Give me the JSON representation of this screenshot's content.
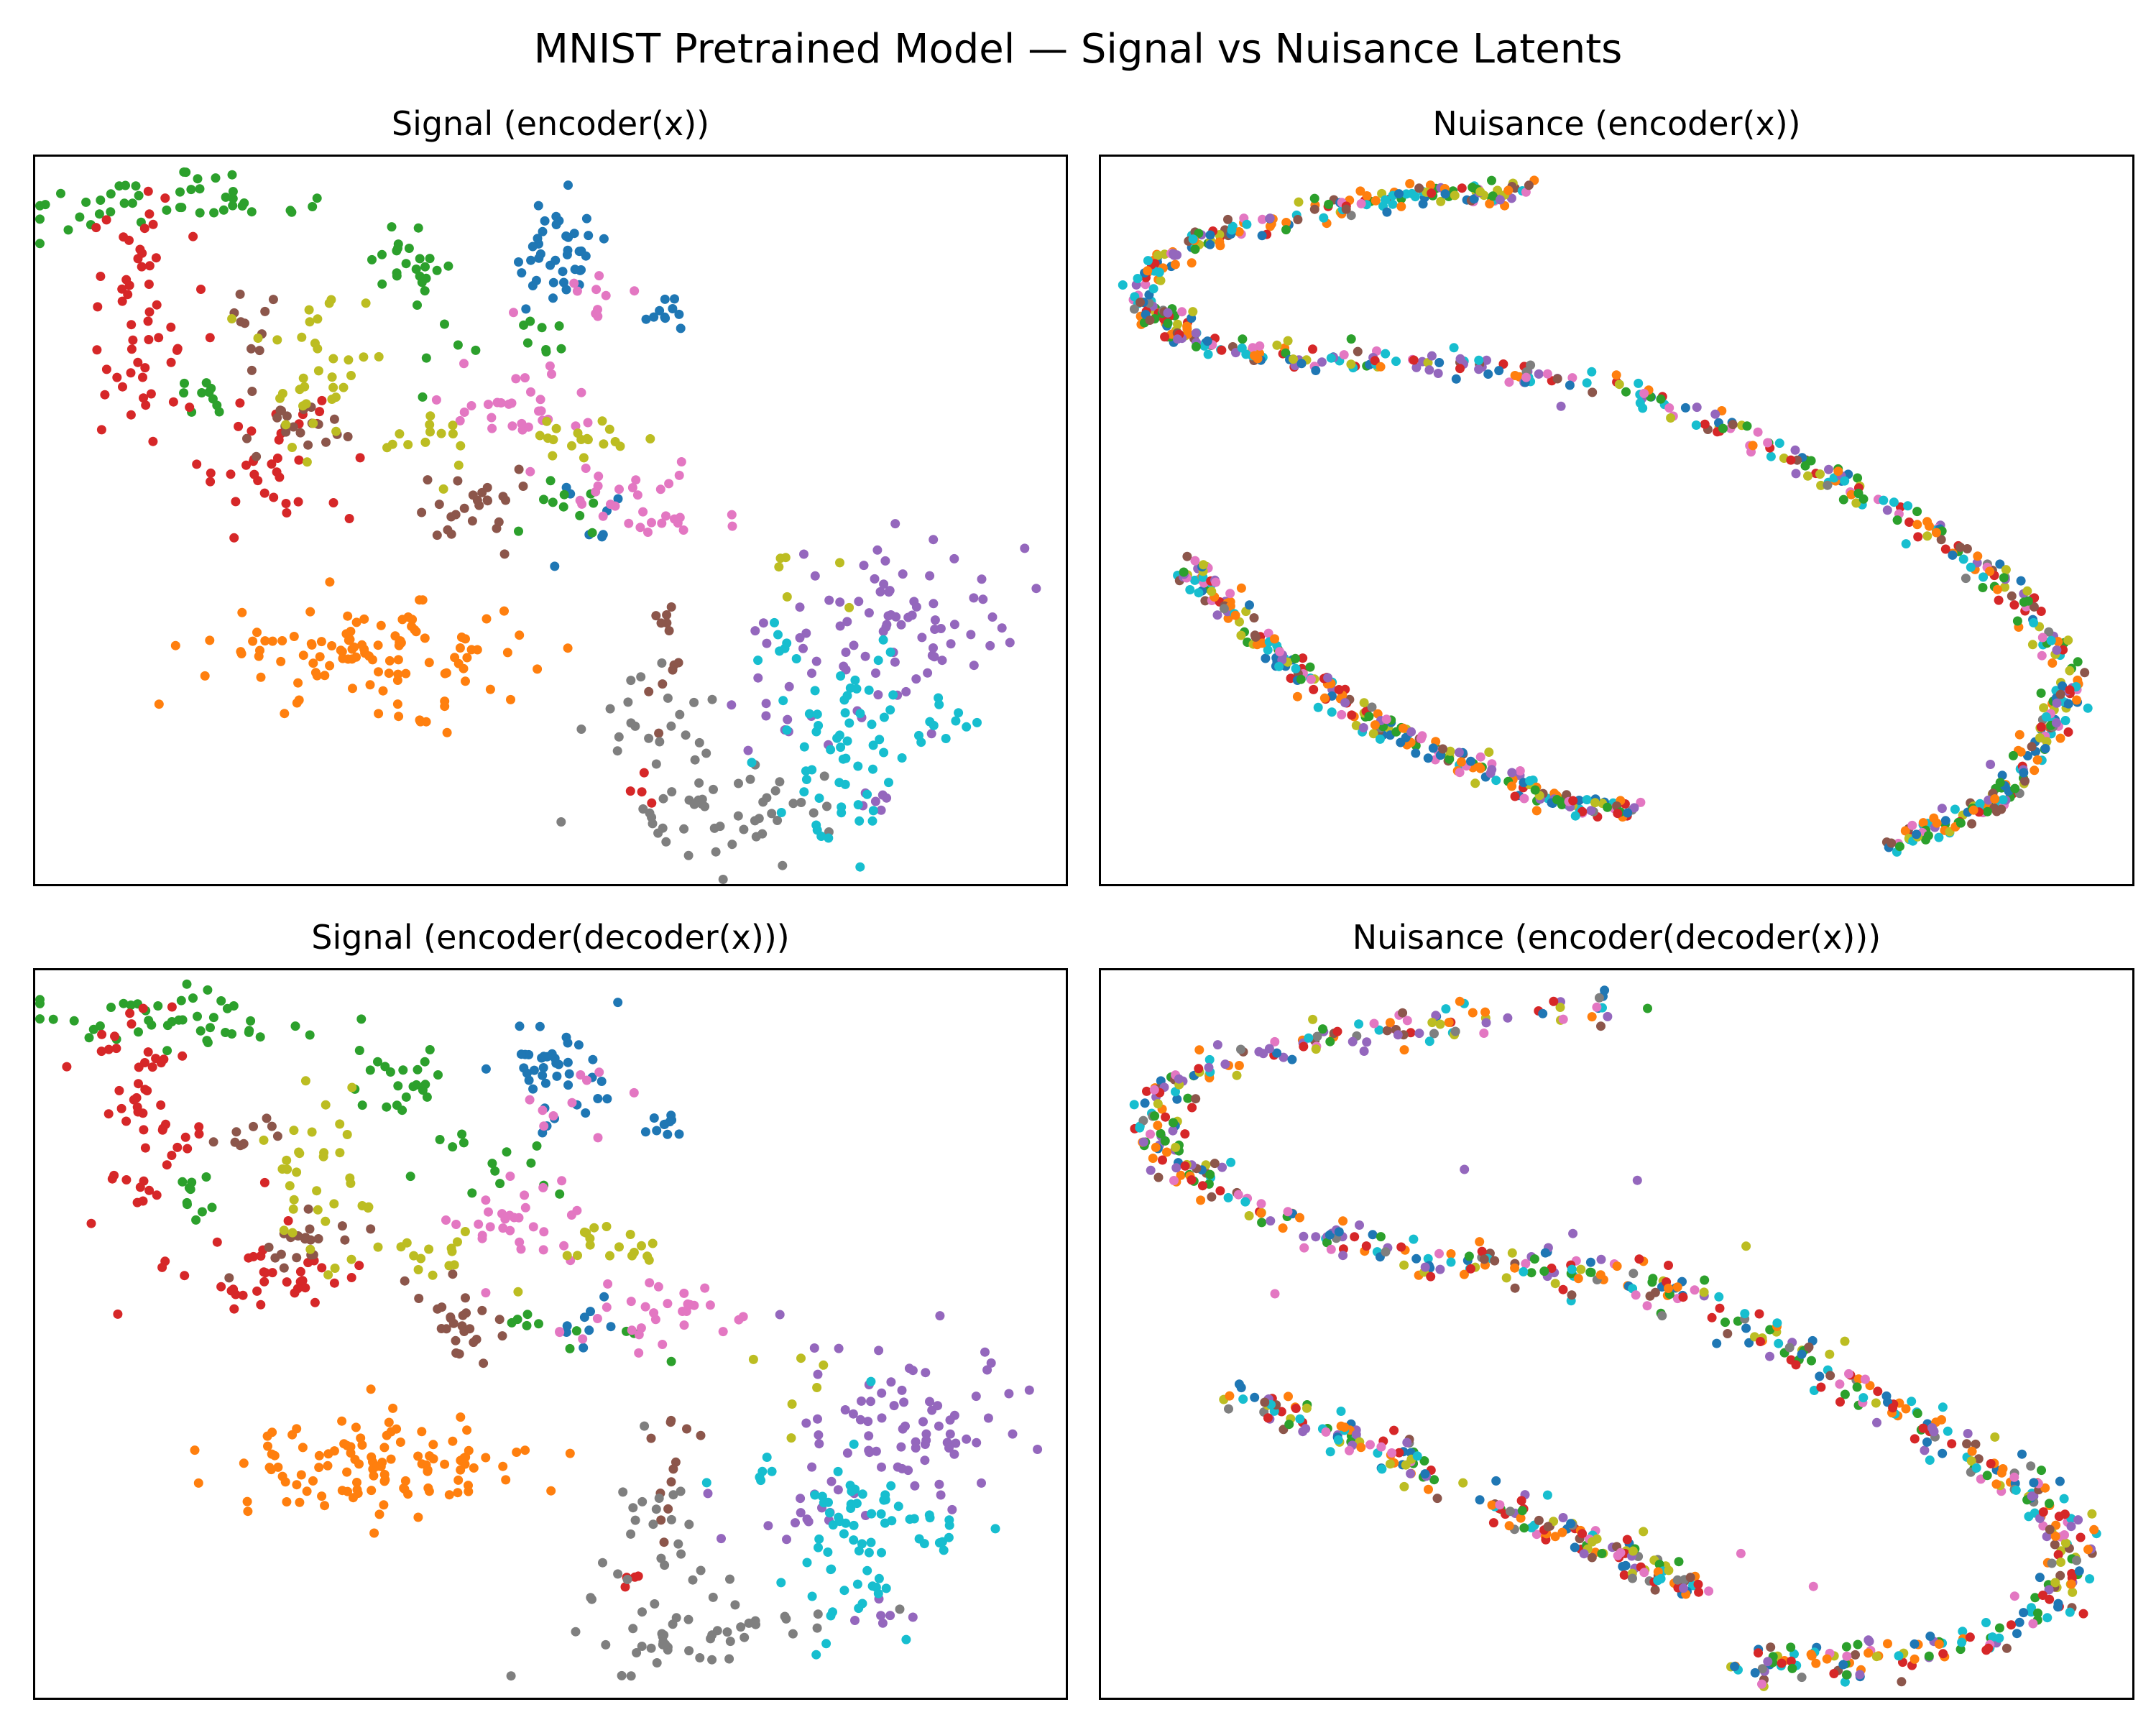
{
  "figure": {
    "title": "MNIST Pretrained Model — Signal vs Nuisance Latents"
  },
  "palette": [
    "#1f77b4",
    "#ff7f0e",
    "#2ca02c",
    "#d62728",
    "#9467bd",
    "#8c564b",
    "#e377c2",
    "#7f7f7f",
    "#bcbd22",
    "#17becf"
  ],
  "chart_data": [
    {
      "type": "scatter",
      "title": "Signal (encoder(x))",
      "xlabel": "",
      "ylabel": "",
      "axes_ticks": "hidden",
      "grid": false,
      "legend": "none",
      "xlim": [
        0,
        100
      ],
      "ylim": [
        0,
        100
      ],
      "series": [
        {
          "color_index": 0,
          "clusters": [
            {
              "cx": 50.5,
              "cy": 86,
              "sx": 2.5,
              "sy": 4,
              "n": 40
            },
            {
              "cx": 61,
              "cy": 78.5,
              "sx": 1.2,
              "sy": 1,
              "n": 10
            },
            {
              "cx": 54,
              "cy": 52,
              "sx": 1.8,
              "sy": 3,
              "n": 8
            }
          ]
        },
        {
          "color_index": 1,
          "clusters": [
            {
              "cx": 33,
              "cy": 32,
              "sx": 8,
              "sy": 3.5,
              "n": 110
            }
          ]
        },
        {
          "color_index": 2,
          "clusters": [
            {
              "cx": 12,
              "cy": 93,
              "sx": 7,
              "sy": 1.8,
              "n": 45
            },
            {
              "cx": 37,
              "cy": 84.5,
              "sx": 3,
              "sy": 2.5,
              "n": 22
            },
            {
              "cx": 16,
              "cy": 68,
              "sx": 1.5,
              "sy": 2,
              "n": 10
            },
            {
              "cx": 44,
              "cy": 73,
              "sx": 5,
              "sy": 3,
              "n": 14
            },
            {
              "cx": 52,
              "cy": 51,
              "sx": 3,
              "sy": 2,
              "n": 10
            }
          ]
        },
        {
          "color_index": 3,
          "clusters": [
            {
              "cx": 11,
              "cy": 79,
              "sx": 2.8,
              "sy": 9,
              "n": 55
            },
            {
              "cx": 23,
              "cy": 58,
              "sx": 4,
              "sy": 4,
              "n": 35
            },
            {
              "cx": 59,
              "cy": 14,
              "sx": 1.5,
              "sy": 2,
              "n": 4
            }
          ]
        },
        {
          "color_index": 4,
          "clusters": [
            {
              "cx": 84,
              "cy": 36.5,
              "sx": 6,
              "sy": 6,
              "n": 75
            },
            {
              "cx": 74,
              "cy": 25,
              "sx": 3,
              "sy": 4,
              "n": 15
            },
            {
              "cx": 82,
              "cy": 11,
              "sx": 1.5,
              "sy": 1,
              "n": 6
            }
          ]
        },
        {
          "color_index": 5,
          "clusters": [
            {
              "cx": 26,
              "cy": 63,
              "sx": 2.5,
              "sy": 2.5,
              "n": 20
            },
            {
              "cx": 41.5,
              "cy": 52,
              "sx": 2.5,
              "sy": 3,
              "n": 25
            },
            {
              "cx": 21,
              "cy": 77,
              "sx": 2,
              "sy": 3,
              "n": 10
            },
            {
              "cx": 61.5,
              "cy": 33,
              "sx": 1.2,
              "sy": 5,
              "n": 12
            }
          ]
        },
        {
          "color_index": 6,
          "clusters": [
            {
              "cx": 46,
              "cy": 65.5,
              "sx": 4,
              "sy": 3,
              "n": 30
            },
            {
              "cx": 59,
              "cy": 52,
              "sx": 4,
              "sy": 3,
              "n": 30
            },
            {
              "cx": 54,
              "cy": 80,
              "sx": 3,
              "sy": 3,
              "n": 10
            }
          ]
        },
        {
          "color_index": 7,
          "clusters": [
            {
              "cx": 66.5,
              "cy": 10,
              "sx": 6,
              "sy": 3.5,
              "n": 50
            },
            {
              "cx": 60,
              "cy": 24,
              "sx": 3.5,
              "sy": 4,
              "n": 20
            }
          ]
        },
        {
          "color_index": 8,
          "clusters": [
            {
              "cx": 28,
              "cy": 72,
              "sx": 3,
              "sy": 6,
              "n": 35
            },
            {
              "cx": 39,
              "cy": 61,
              "sx": 2.5,
              "sy": 2,
              "n": 14
            },
            {
              "cx": 54.5,
              "cy": 61.5,
              "sx": 3.5,
              "sy": 2,
              "n": 18
            },
            {
              "cx": 74,
              "cy": 42,
              "sx": 2.5,
              "sy": 4,
              "n": 6
            }
          ]
        },
        {
          "color_index": 9,
          "clusters": [
            {
              "cx": 79,
              "cy": 20,
              "sx": 3,
              "sy": 7,
              "n": 60
            },
            {
              "cx": 87,
              "cy": 22.5,
              "sx": 2,
              "sy": 2,
              "n": 12
            },
            {
              "cx": 70.5,
              "cy": 32,
              "sx": 2,
              "sy": 1.5,
              "n": 6
            }
          ]
        }
      ]
    },
    {
      "type": "scatter",
      "title": "Nuisance (encoder(x))",
      "xlabel": "",
      "ylabel": "",
      "axes_ticks": "hidden",
      "grid": false,
      "legend": "none",
      "xlim": [
        0,
        100
      ],
      "ylim": [
        0,
        100
      ],
      "curves": [
        {
          "n": 650,
          "spread": 0.9,
          "path": [
            [
              42,
              95
            ],
            [
              33,
              94.5
            ],
            [
              24,
              93
            ],
            [
              14,
              90
            ],
            [
              6,
              86
            ],
            [
              4,
              80
            ],
            [
              8,
              75.5
            ],
            [
              15,
              72.5
            ],
            [
              25,
              72
            ],
            [
              37,
              71
            ],
            [
              50,
              68
            ],
            [
              62,
              62
            ],
            [
              72,
              55
            ],
            [
              80,
              49
            ],
            [
              87,
              42
            ],
            [
              91,
              35
            ],
            [
              94,
              29
            ],
            [
              92,
              22
            ],
            [
              89,
              15
            ],
            [
              84,
              10
            ],
            [
              76,
              5
            ]
          ]
        },
        {
          "n": 260,
          "spread": 0.9,
          "path": [
            [
              8,
              44
            ],
            [
              12,
              39
            ],
            [
              17,
              32
            ],
            [
              23,
              25.5
            ],
            [
              30,
              20
            ],
            [
              37,
              16
            ],
            [
              44,
              12
            ],
            [
              52,
              10
            ]
          ]
        }
      ],
      "mix_weights": [
        1.2,
        1.5,
        1.1,
        1,
        1.2,
        0.8,
        1,
        0.5,
        0.9,
        1.2
      ]
    },
    {
      "type": "scatter",
      "title": "Signal (encoder(decoder(x)))",
      "xlabel": "",
      "ylabel": "",
      "axes_ticks": "hidden",
      "grid": false,
      "legend": "none",
      "xlim": [
        0,
        100
      ],
      "ylim": [
        0,
        100
      ],
      "series": [
        {
          "color_index": 0,
          "clusters": [
            {
              "cx": 50.5,
              "cy": 86,
              "sx": 2.5,
              "sy": 4,
              "n": 40
            },
            {
              "cx": 61,
              "cy": 78.5,
              "sx": 1.2,
              "sy": 1,
              "n": 10
            },
            {
              "cx": 54,
              "cy": 52,
              "sx": 1.8,
              "sy": 3,
              "n": 8
            }
          ]
        },
        {
          "color_index": 1,
          "clusters": [
            {
              "cx": 33,
              "cy": 32,
              "sx": 8,
              "sy": 3.5,
              "n": 110
            }
          ]
        },
        {
          "color_index": 2,
          "clusters": [
            {
              "cx": 12,
              "cy": 93,
              "sx": 7,
              "sy": 1.8,
              "n": 45
            },
            {
              "cx": 37,
              "cy": 84.5,
              "sx": 3,
              "sy": 2.5,
              "n": 22
            },
            {
              "cx": 16,
              "cy": 68,
              "sx": 1.5,
              "sy": 2,
              "n": 10
            },
            {
              "cx": 44,
              "cy": 73,
              "sx": 5,
              "sy": 3,
              "n": 14
            },
            {
              "cx": 52,
              "cy": 51,
              "sx": 3,
              "sy": 2,
              "n": 10
            }
          ]
        },
        {
          "color_index": 3,
          "clusters": [
            {
              "cx": 11,
              "cy": 79,
              "sx": 2.8,
              "sy": 9,
              "n": 55
            },
            {
              "cx": 23,
              "cy": 58,
              "sx": 4,
              "sy": 4,
              "n": 35
            },
            {
              "cx": 59,
              "cy": 14,
              "sx": 1.5,
              "sy": 2,
              "n": 4
            }
          ]
        },
        {
          "color_index": 4,
          "clusters": [
            {
              "cx": 84,
              "cy": 36.5,
              "sx": 6,
              "sy": 6,
              "n": 75
            },
            {
              "cx": 74,
              "cy": 25,
              "sx": 3,
              "sy": 4,
              "n": 15
            },
            {
              "cx": 82,
              "cy": 11,
              "sx": 1.5,
              "sy": 1,
              "n": 6
            }
          ]
        },
        {
          "color_index": 5,
          "clusters": [
            {
              "cx": 26,
              "cy": 63,
              "sx": 2.5,
              "sy": 2.5,
              "n": 20
            },
            {
              "cx": 41.5,
              "cy": 52,
              "sx": 2.5,
              "sy": 3,
              "n": 25
            },
            {
              "cx": 21,
              "cy": 77,
              "sx": 2,
              "sy": 3,
              "n": 10
            },
            {
              "cx": 61.5,
              "cy": 33,
              "sx": 1.2,
              "sy": 5,
              "n": 12
            }
          ]
        },
        {
          "color_index": 6,
          "clusters": [
            {
              "cx": 46,
              "cy": 65.5,
              "sx": 4,
              "sy": 3,
              "n": 30
            },
            {
              "cx": 59,
              "cy": 52,
              "sx": 4,
              "sy": 3,
              "n": 30
            },
            {
              "cx": 54,
              "cy": 80,
              "sx": 3,
              "sy": 3,
              "n": 10
            }
          ]
        },
        {
          "color_index": 7,
          "clusters": [
            {
              "cx": 66.5,
              "cy": 10,
              "sx": 6,
              "sy": 3.5,
              "n": 50
            },
            {
              "cx": 60,
              "cy": 24,
              "sx": 3.5,
              "sy": 4,
              "n": 20
            }
          ]
        },
        {
          "color_index": 8,
          "clusters": [
            {
              "cx": 28,
              "cy": 72,
              "sx": 3,
              "sy": 6,
              "n": 35
            },
            {
              "cx": 39,
              "cy": 61,
              "sx": 2.5,
              "sy": 2,
              "n": 14
            },
            {
              "cx": 54.5,
              "cy": 61.5,
              "sx": 3.5,
              "sy": 2,
              "n": 18
            },
            {
              "cx": 74,
              "cy": 42,
              "sx": 2.5,
              "sy": 4,
              "n": 6
            }
          ]
        },
        {
          "color_index": 9,
          "clusters": [
            {
              "cx": 79,
              "cy": 20,
              "sx": 3,
              "sy": 7,
              "n": 60
            },
            {
              "cx": 87,
              "cy": 22.5,
              "sx": 2,
              "sy": 2,
              "n": 12
            },
            {
              "cx": 70.5,
              "cy": 32,
              "sx": 2,
              "sy": 1.5,
              "n": 6
            }
          ]
        }
      ]
    },
    {
      "type": "scatter",
      "title": "Nuisance (encoder(decoder(x)))",
      "xlabel": "",
      "ylabel": "",
      "axes_ticks": "hidden",
      "grid": false,
      "legend": "none",
      "xlim": [
        0,
        100
      ],
      "ylim": [
        0,
        100
      ],
      "curves": [
        {
          "n": 620,
          "spread": 1.4,
          "path": [
            [
              52,
              95
            ],
            [
              40,
              94
            ],
            [
              28,
              92
            ],
            [
              16,
              89
            ],
            [
              7,
              84
            ],
            [
              5,
              78
            ],
            [
              8,
              72
            ],
            [
              15,
              67
            ],
            [
              24,
              63
            ],
            [
              33,
              60
            ],
            [
              42,
              59.5
            ],
            [
              52,
              57
            ],
            [
              60,
              53
            ],
            [
              67,
              48
            ],
            [
              74,
              42
            ],
            [
              81,
              36
            ],
            [
              88,
              30
            ],
            [
              93,
              24
            ],
            [
              94,
              18
            ],
            [
              92,
              12
            ],
            [
              86,
              8
            ],
            [
              78,
              6
            ],
            [
              68,
              5
            ],
            [
              62,
              4.5
            ]
          ]
        },
        {
          "n": 90,
          "spread": 1.1,
          "path": [
            [
              13,
              42
            ],
            [
              18,
              39
            ],
            [
              24,
              36.5
            ],
            [
              30,
              33
            ],
            [
              33,
              29
            ]
          ]
        },
        {
          "n": 110,
          "spread": 1.1,
          "path": [
            [
              37,
              27
            ],
            [
              43,
              24
            ],
            [
              49,
              20
            ],
            [
              55,
              17
            ],
            [
              58,
              14
            ]
          ]
        }
      ],
      "extra_points": [
        {
          "x": 5.5,
          "y": 75.5,
          "color_index": 1
        },
        {
          "x": 35.3,
          "y": 72.5,
          "color_index": 4
        },
        {
          "x": 52,
          "y": 71,
          "color_index": 4
        },
        {
          "x": 62.5,
          "y": 62,
          "color_index": 8
        },
        {
          "x": 17,
          "y": 55.5,
          "color_index": 6
        },
        {
          "x": 62,
          "y": 20,
          "color_index": 6
        },
        {
          "x": 65.5,
          "y": 51.5,
          "color_index": 9
        },
        {
          "x": 81.5,
          "y": 40,
          "color_index": 9
        },
        {
          "x": 69,
          "y": 15.5,
          "color_index": 6
        }
      ],
      "mix_weights": [
        1.1,
        1.6,
        1.2,
        1.2,
        1.2,
        0.9,
        1,
        0.6,
        0.9,
        1.3
      ]
    }
  ]
}
